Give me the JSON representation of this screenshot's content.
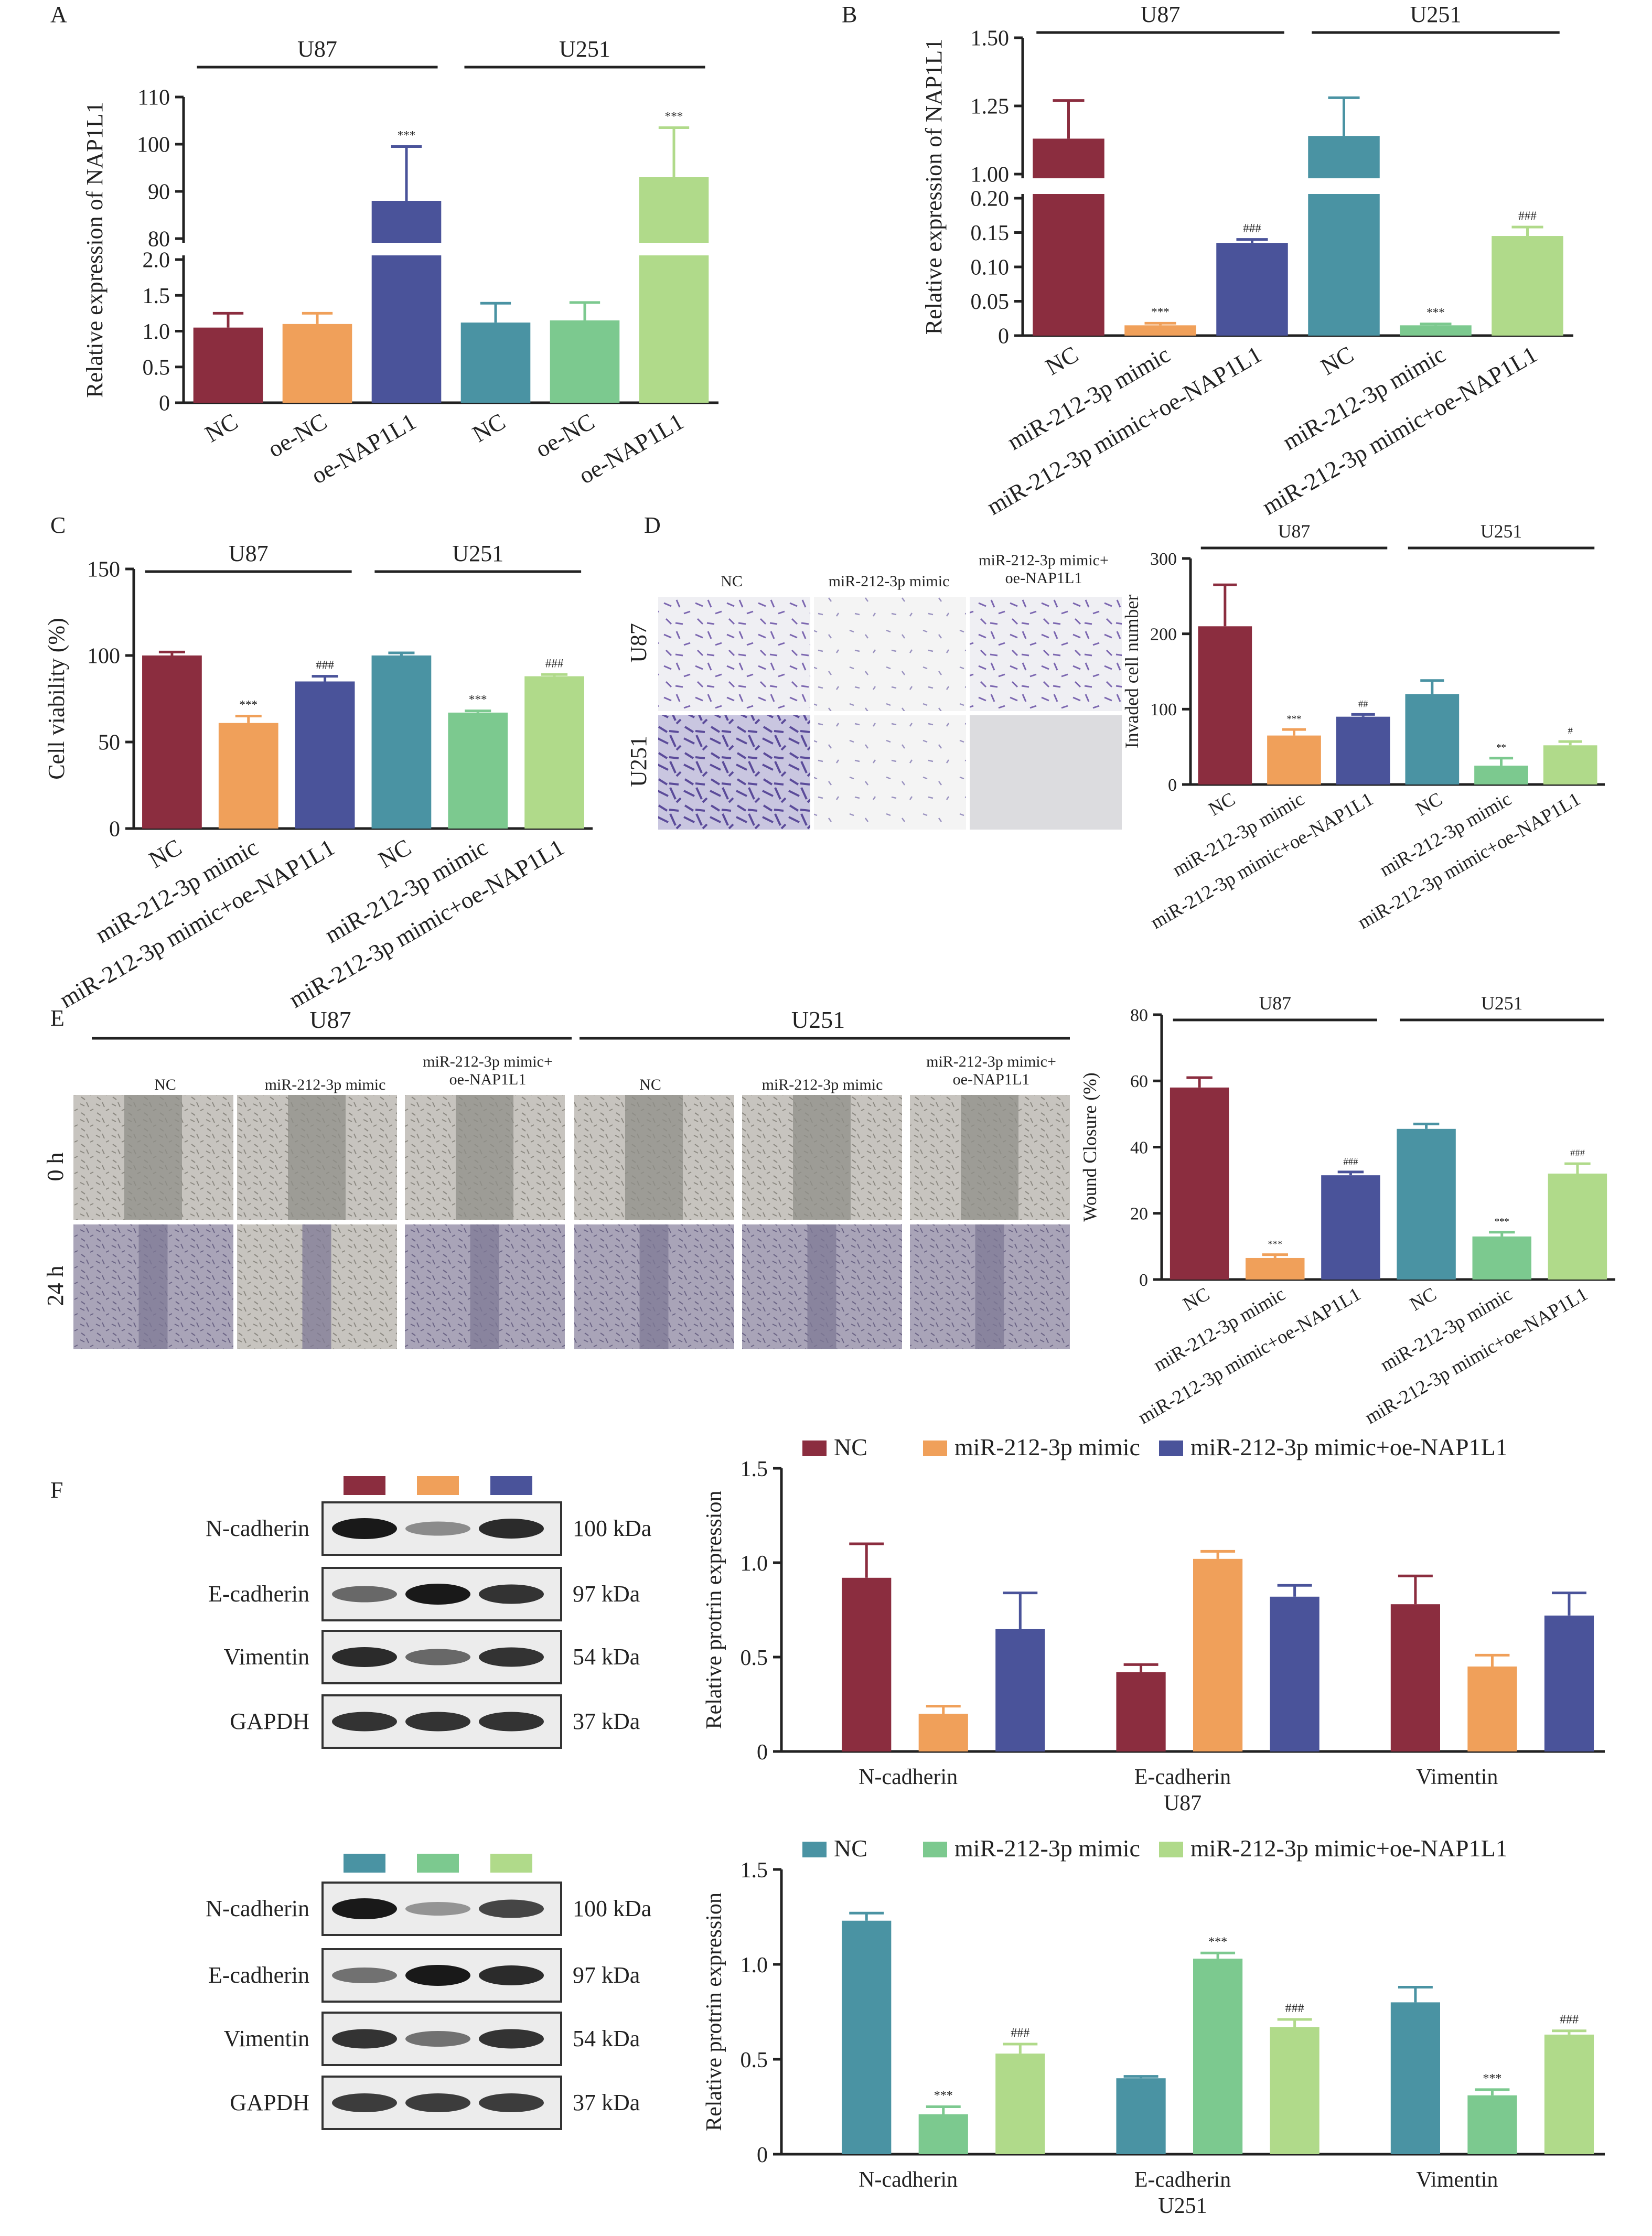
{
  "colors": {
    "u87_nc": "#8B2D3F",
    "u87_mimic": "#F0A05A",
    "u87_oe": "#4A539A",
    "u251_nc": "#4A93A3",
    "u251_mimic": "#7CC98F",
    "u251_oe": "#B0DA8A"
  },
  "panels": {
    "A": "A",
    "B": "B",
    "C": "C",
    "D": "D",
    "E": "E",
    "F": "F"
  },
  "cells": {
    "u87": "U87",
    "u251": "U251"
  },
  "micro": {
    "nc": "NC",
    "mimic": "miR-212-3p mimic",
    "combo_line1": "miR-212-3p mimic+",
    "combo_line2": "oe-NAP1L1",
    "row_0h": "0 h",
    "row_24h": "24 h"
  },
  "blots": {
    "labels": [
      "N-cadherin",
      "E-cadherin",
      "Vimentin",
      "GAPDH"
    ],
    "kda": [
      "100 kDa",
      "97 kDa",
      "54 kDa",
      "37 kDa"
    ]
  },
  "chart_data": [
    {
      "id": "A",
      "type": "bar",
      "broken_axis": true,
      "ylabel": "Relative expression of NAP1L1",
      "categories": [
        "NC",
        "oe-NC",
        "oe-NAP1L1",
        "NC",
        "oe-NC",
        "oe-NAP1L1"
      ],
      "groups": [
        "U87",
        "U251"
      ],
      "values": [
        1.05,
        1.1,
        88,
        1.12,
        1.15,
        93
      ],
      "errors": [
        0.2,
        0.15,
        11.5,
        0.27,
        0.25,
        10.5
      ],
      "annotations": [
        "",
        "",
        "***",
        "",
        "",
        "***"
      ],
      "lower_ticks": [
        "0",
        "0.5",
        "1.0",
        "1.5",
        "2.0"
      ],
      "upper_ticks": [
        "80",
        "90",
        "100",
        "110"
      ]
    },
    {
      "id": "B",
      "type": "bar",
      "broken_axis": true,
      "ylabel": "Relative expression of NAP1L1",
      "categories": [
        "NC",
        "miR-212-3p mimic",
        "miR-212-3p mimic+oe-NAP1L1",
        "NC",
        "miR-212-3p mimic",
        "miR-212-3p mimic+oe-NAP1L1"
      ],
      "groups": [
        "U87",
        "U251"
      ],
      "values": [
        1.13,
        0.015,
        0.135,
        1.14,
        0.015,
        0.145
      ],
      "errors": [
        0.14,
        0.003,
        0.005,
        0.14,
        0.002,
        0.013
      ],
      "annotations": [
        "",
        "***",
        "###",
        "",
        "***",
        "###"
      ],
      "lower_ticks": [
        "0",
        "0.05",
        "0.10",
        "0.15",
        "0.20"
      ],
      "upper_ticks": [
        "1.00",
        "1.25",
        "1.50"
      ]
    },
    {
      "id": "C",
      "type": "bar",
      "ylabel": "Cell viability (%)",
      "categories": [
        "NC",
        "miR-212-3p mimic",
        "miR-212-3p mimic+oe-NAP1L1",
        "NC",
        "miR-212-3p mimic",
        "miR-212-3p mimic+oe-NAP1L1"
      ],
      "groups": [
        "U87",
        "U251"
      ],
      "values": [
        100,
        61,
        85,
        100,
        67,
        88
      ],
      "errors": [
        2,
        4,
        3,
        1.5,
        1,
        1
      ],
      "annotations": [
        "",
        "***",
        "###",
        "",
        "***",
        "###"
      ],
      "ylim": [
        0,
        150
      ],
      "ticks": [
        "0",
        "50",
        "100",
        "150"
      ]
    },
    {
      "id": "D",
      "type": "bar",
      "ylabel": "Invaded cell number",
      "categories": [
        "NC",
        "miR-212-3p mimic",
        "miR-212-3p mimic+oe-NAP1L1",
        "NC",
        "miR-212-3p mimic",
        "miR-212-3p mimic+oe-NAP1L1"
      ],
      "groups": [
        "U87",
        "U251"
      ],
      "values": [
        210,
        65,
        90,
        120,
        25,
        52
      ],
      "errors": [
        55,
        8,
        3,
        18,
        10,
        5
      ],
      "annotations": [
        "",
        "***",
        "##",
        "",
        "**",
        "#"
      ],
      "ylim": [
        0,
        300
      ],
      "ticks": [
        "0",
        "100",
        "200",
        "300"
      ]
    },
    {
      "id": "E",
      "type": "bar",
      "ylabel": "Wound Closure (%)",
      "categories": [
        "NC",
        "miR-212-3p mimic",
        "miR-212-3p mimic+oe-NAP1L1",
        "NC",
        "miR-212-3p mimic",
        "miR-212-3p mimic+oe-NAP1L1"
      ],
      "groups": [
        "U87",
        "U251"
      ],
      "values": [
        58,
        6.5,
        31.5,
        45.5,
        13,
        32
      ],
      "errors": [
        3,
        1,
        1,
        1.5,
        1.3,
        3
      ],
      "annotations": [
        "",
        "***",
        "###",
        "",
        "***",
        "###"
      ],
      "ylim": [
        0,
        80
      ],
      "ticks": [
        "0",
        "20",
        "40",
        "60",
        "80"
      ]
    },
    {
      "id": "F_U87",
      "type": "bar",
      "ylabel": "Relative protrin expression",
      "xlabel": "U87",
      "categories": [
        "N-cadherin",
        "E-cadherin",
        "Vimentin"
      ],
      "legend": [
        "NC",
        "miR-212-3p mimic",
        "miR-212-3p mimic+oe-NAP1L1"
      ],
      "series": [
        {
          "name": "NC",
          "values": [
            0.92,
            0.42,
            0.78
          ],
          "errors": [
            0.18,
            0.04,
            0.15
          ]
        },
        {
          "name": "miR-212-3p mimic",
          "values": [
            0.2,
            1.02,
            0.45
          ],
          "errors": [
            0.04,
            0.04,
            0.06
          ]
        },
        {
          "name": "miR-212-3p mimic+oe-NAP1L1",
          "values": [
            0.65,
            0.82,
            0.72
          ],
          "errors": [
            0.19,
            0.06,
            0.12
          ]
        }
      ],
      "ylim": [
        0,
        1.5
      ],
      "ticks": [
        "0",
        "0.5",
        "1.0",
        "1.5"
      ]
    },
    {
      "id": "F_U251",
      "type": "bar",
      "ylabel": "Relative protrin expression",
      "xlabel": "U251",
      "categories": [
        "N-cadherin",
        "E-cadherin",
        "Vimentin"
      ],
      "legend": [
        "NC",
        "miR-212-3p mimic",
        "miR-212-3p mimic+oe-NAP1L1"
      ],
      "series": [
        {
          "name": "NC",
          "values": [
            1.23,
            0.4,
            0.8
          ],
          "errors": [
            0.04,
            0.01,
            0.08
          ],
          "annotations": [
            "",
            "",
            ""
          ]
        },
        {
          "name": "miR-212-3p mimic",
          "values": [
            0.21,
            1.03,
            0.31
          ],
          "errors": [
            0.04,
            0.03,
            0.03
          ],
          "annotations": [
            "***",
            "***",
            "***"
          ]
        },
        {
          "name": "miR-212-3p mimic+oe-NAP1L1",
          "values": [
            0.53,
            0.67,
            0.63
          ],
          "errors": [
            0.05,
            0.04,
            0.02
          ],
          "annotations": [
            "###",
            "###",
            "###"
          ]
        }
      ],
      "ylim": [
        0,
        1.5
      ],
      "ticks": [
        "0",
        "0.5",
        "1.0",
        "1.5"
      ]
    }
  ]
}
